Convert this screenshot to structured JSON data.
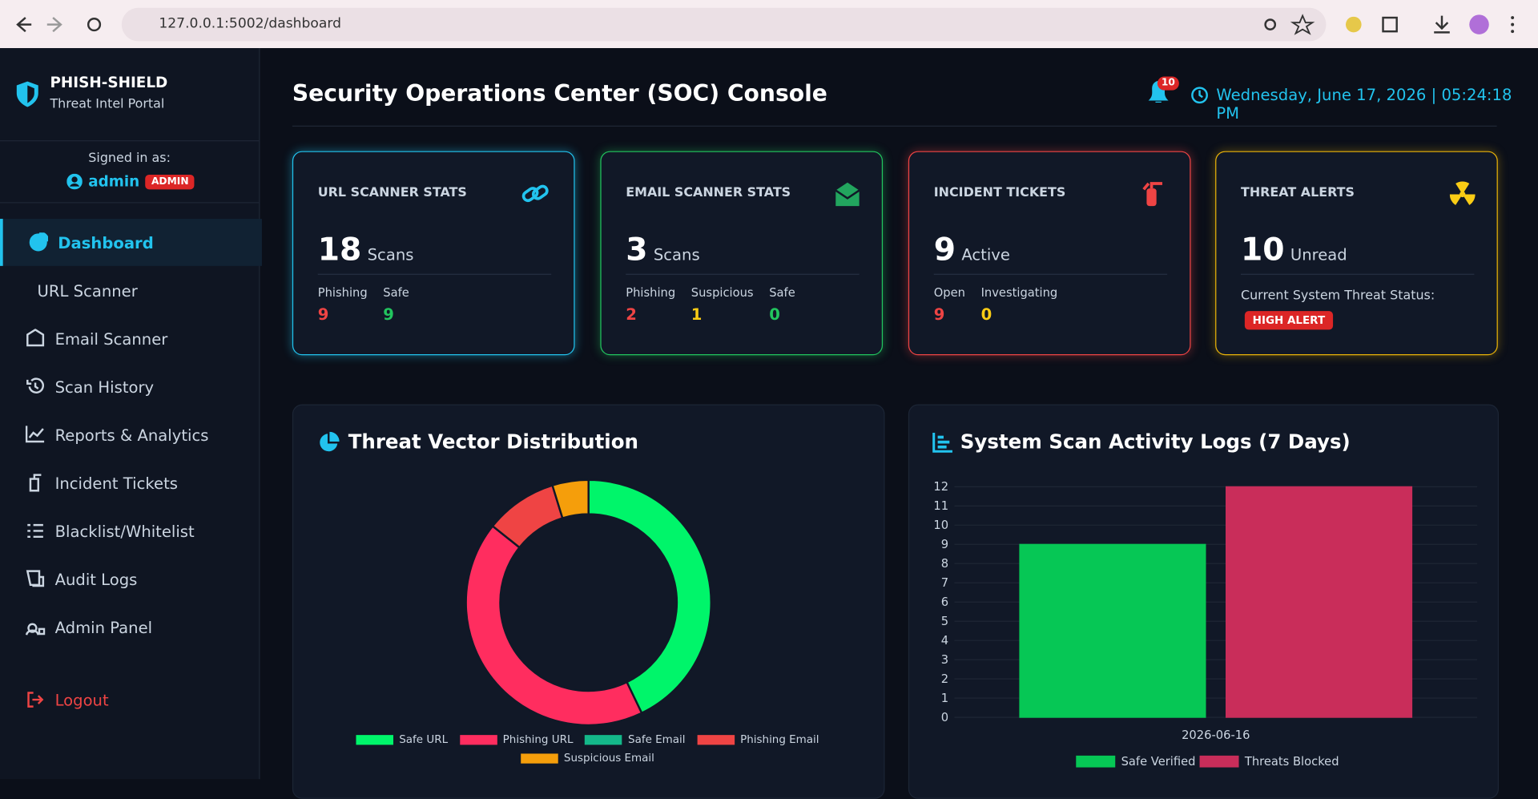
{
  "browser": {
    "url": "127.0.0.1:5002/dashboard"
  },
  "sidebar": {
    "brand": "PHISH-SHIELD",
    "subtitle": "Threat Intel Portal",
    "signed_in_label": "Signed in as:",
    "user": "admin",
    "role": "ADMIN",
    "nav": [
      "Dashboard",
      "URL Scanner",
      "Email Scanner",
      "Scan History",
      "Reports & Analytics",
      "Incident Tickets",
      "Blacklist/Whitelist",
      "Audit Logs",
      "Admin Panel"
    ],
    "logout": "Logout"
  },
  "header": {
    "title": "Security Operations Center (SOC) Console",
    "notifications": 10,
    "datetime": "Wednesday, June 17, 2026 | 05:24:18 PM"
  },
  "cards": [
    {
      "title": "URL SCANNER STATS",
      "value": 18,
      "unit": "Scans",
      "stats": [
        {
          "label": "Phishing",
          "value": 9
        },
        {
          "label": "Safe",
          "value": 9
        }
      ]
    },
    {
      "title": "EMAIL SCANNER STATS",
      "value": 3,
      "unit": "Scans",
      "stats": [
        {
          "label": "Phishing",
          "value": 2
        },
        {
          "label": "Suspicious",
          "value": 1
        },
        {
          "label": "Safe",
          "value": 0
        }
      ]
    },
    {
      "title": "INCIDENT TICKETS",
      "value": 9,
      "unit": "Active",
      "stats": [
        {
          "label": "Open",
          "value": 9
        },
        {
          "label": "Investigating",
          "value": 0
        }
      ]
    },
    {
      "title": "THREAT ALERTS",
      "value": 10,
      "unit": "Unread",
      "status_label": "Current System Threat Status:",
      "status": "HIGH ALERT"
    }
  ],
  "chart_data": [
    {
      "type": "donut",
      "title": "Threat Vector Distribution",
      "categories": [
        "Safe URL",
        "Phishing URL",
        "Safe Email",
        "Phishing Email",
        "Suspicious Email"
      ],
      "values": [
        9,
        9,
        0,
        2,
        1
      ],
      "colors": [
        "#00f56a",
        "#ff2d5f",
        "#14b88a",
        "#ef4444",
        "#f59e0b"
      ]
    },
    {
      "type": "bar",
      "title": "System Scan Activity Logs (7 Days)",
      "categories": [
        "2026-06-16"
      ],
      "series": [
        {
          "name": "Safe Verified",
          "color": "#06c755",
          "values": [
            9
          ]
        },
        {
          "name": "Threats Blocked",
          "color": "#c92d5a",
          "values": [
            12
          ]
        }
      ],
      "ylim": [
        0,
        12
      ],
      "yticks": [
        0,
        1,
        2,
        3,
        4,
        5,
        6,
        7,
        8,
        9,
        10,
        11,
        12
      ],
      "grid": true
    }
  ]
}
